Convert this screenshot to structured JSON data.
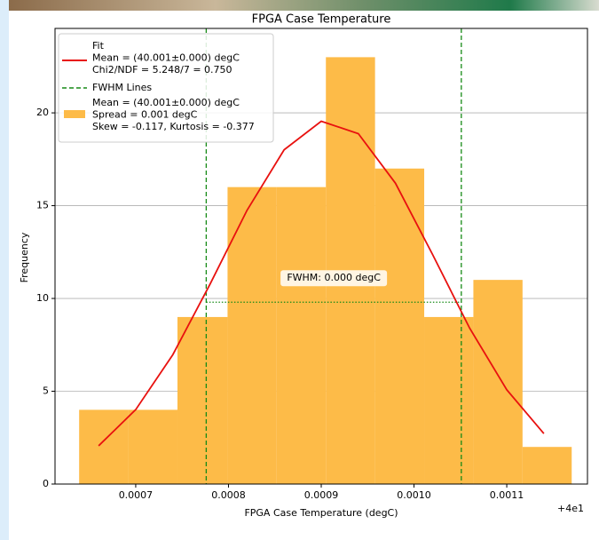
{
  "chart_data": {
    "type": "histogram",
    "title": "FPGA Case Temperature",
    "xlabel": "FPGA Case Temperature (degC)",
    "ylabel": "Frequency",
    "x_offset_label": "+4e1",
    "bins": [
      0.000639,
      0.000692,
      0.000745,
      0.000799,
      0.000852,
      0.000905,
      0.000958,
      0.001011,
      0.001064,
      0.001117,
      0.00117
    ],
    "counts": [
      4,
      4,
      9,
      16,
      16,
      23,
      17,
      9,
      11,
      2
    ],
    "color": "#fdbb48",
    "label": [
      "Mean = (40.001±0.000) degC",
      "Spread = 0.001 degC",
      "Skew = -0.117, Kurtosis = -0.377"
    ],
    "fit": {
      "label": [
        "Fit",
        "Mean = (40.001±0.000) degC",
        "Chi2/NDF = 5.248/7 = 0.750"
      ],
      "color": "#e8110f",
      "x": [
        0.00066,
        0.0007,
        0.00074,
        0.00078,
        0.00082,
        0.00086,
        0.0009,
        0.00094,
        0.00098,
        0.00102,
        0.00106,
        0.0011,
        0.00114
      ],
      "y": [
        2.06,
        4.01,
        6.97,
        10.76,
        14.75,
        18.01,
        19.55,
        18.88,
        16.21,
        12.37,
        8.4,
        5.08,
        2.72
      ]
    },
    "fwhm": {
      "label": "FWHM Lines",
      "color": "#168a16",
      "x": [
        0.000776,
        0.001051
      ],
      "level": 9.8,
      "annotation": "FWHM: 0.000 degC"
    },
    "xlim": [
      0.000613,
      0.001187
    ],
    "ylim": [
      0,
      24.55
    ],
    "xticks": [
      0.0007,
      0.0008,
      0.0009,
      {
        "value": 0.001,
        "label": "0.0010"
      },
      0.0011
    ],
    "yticks": [
      0,
      5,
      10,
      15,
      20
    ],
    "grid": "y"
  }
}
